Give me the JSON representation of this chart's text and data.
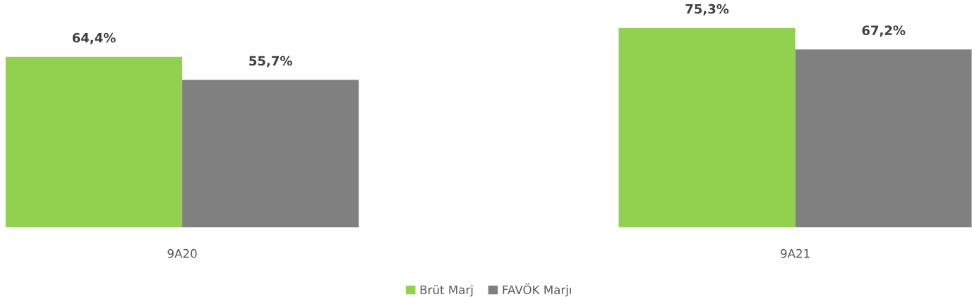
{
  "chart_data": {
    "type": "bar",
    "categories": [
      "9A20",
      "9A21"
    ],
    "series": [
      {
        "name": "Brüt Marj",
        "color": "#92d050",
        "values": [
          64.4,
          75.3
        ],
        "value_labels": [
          "64,4%",
          "75,3%"
        ]
      },
      {
        "name": "FAVÖK Marjı",
        "color": "#808080",
        "values": [
          55.7,
          67.2
        ],
        "value_labels": [
          "55,7%",
          "67,2%"
        ]
      }
    ],
    "grid": false,
    "legend": "bottom"
  }
}
